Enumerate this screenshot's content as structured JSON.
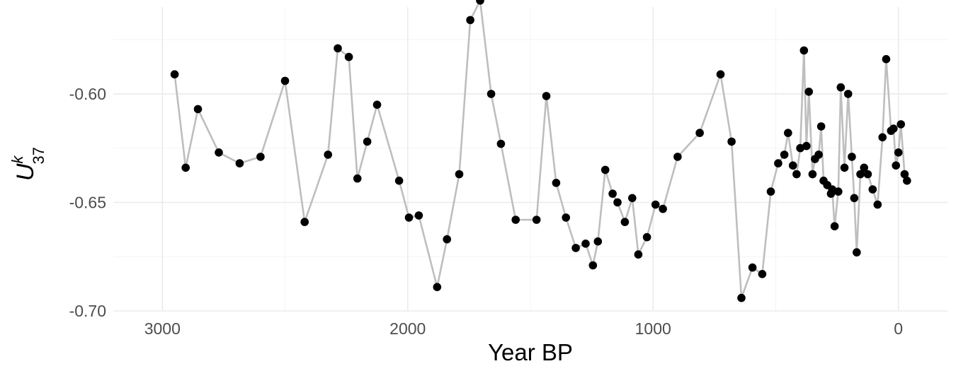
{
  "chart_data": {
    "type": "scatter",
    "title": "",
    "xlabel": "Year BP",
    "ylabel": {
      "main": "U",
      "superscript": "k",
      "subscript": "37"
    },
    "x_reversed": true,
    "xlim": [
      3200,
      -200
    ],
    "ylim": [
      -0.7,
      -0.56
    ],
    "x_ticks": [
      {
        "value": 3000,
        "label": "3000"
      },
      {
        "value": 2000,
        "label": "2000"
      },
      {
        "value": 1000,
        "label": "1000"
      },
      {
        "value": 0,
        "label": "0"
      }
    ],
    "y_ticks": [
      {
        "value": -0.6,
        "label": "-0.60"
      },
      {
        "value": -0.65,
        "label": "-0.65"
      },
      {
        "value": -0.7,
        "label": "-0.70"
      }
    ],
    "grid": true,
    "colors": {
      "line": "#bebebe",
      "points": "#000000",
      "grid": "#ebebeb"
    },
    "series": [
      {
        "x": [
          2950,
          2905,
          2855,
          2770,
          2685,
          2600,
          2500,
          2420,
          2325,
          2285,
          2240,
          2205,
          2165,
          2125,
          2035,
          1995,
          1955,
          1880,
          1840,
          1790,
          1745,
          1705,
          1660,
          1620,
          1560,
          1475,
          1435,
          1395,
          1355,
          1315,
          1275,
          1245,
          1225,
          1195,
          1165,
          1145,
          1115,
          1085,
          1060,
          1025,
          990,
          960,
          900,
          810,
          725,
          680,
          640,
          595,
          555,
          520,
          490,
          465,
          450,
          430,
          415,
          400,
          385,
          375,
          365,
          350,
          340,
          325,
          315,
          305,
          290,
          275,
          270,
          260,
          245,
          235,
          220,
          205,
          190,
          180,
          170,
          155,
          140,
          125,
          105,
          85,
          65,
          50,
          30,
          20,
          10,
          0,
          -10,
          -25,
          -35
        ],
        "y": [
          -0.591,
          -0.634,
          -0.607,
          -0.627,
          -0.632,
          -0.629,
          -0.594,
          -0.659,
          -0.628,
          -0.579,
          -0.583,
          -0.639,
          -0.622,
          -0.605,
          -0.64,
          -0.657,
          -0.656,
          -0.689,
          -0.667,
          -0.637,
          -0.566,
          -0.557,
          -0.6,
          -0.623,
          -0.658,
          -0.658,
          -0.601,
          -0.641,
          -0.657,
          -0.671,
          -0.669,
          -0.679,
          -0.668,
          -0.635,
          -0.646,
          -0.65,
          -0.659,
          -0.648,
          -0.674,
          -0.666,
          -0.651,
          -0.653,
          -0.629,
          -0.618,
          -0.591,
          -0.622,
          -0.694,
          -0.68,
          -0.683,
          -0.645,
          -0.632,
          -0.628,
          -0.618,
          -0.633,
          -0.637,
          -0.625,
          -0.58,
          -0.624,
          -0.599,
          -0.637,
          -0.63,
          -0.628,
          -0.615,
          -0.64,
          -0.642,
          -0.646,
          -0.644,
          -0.661,
          -0.645,
          -0.597,
          -0.634,
          -0.6,
          -0.629,
          -0.648,
          -0.673,
          -0.637,
          -0.634,
          -0.637,
          -0.644,
          -0.651,
          -0.62,
          -0.584,
          -0.617,
          -0.616,
          -0.633,
          -0.627,
          -0.614,
          -0.637,
          -0.64
        ]
      }
    ]
  }
}
